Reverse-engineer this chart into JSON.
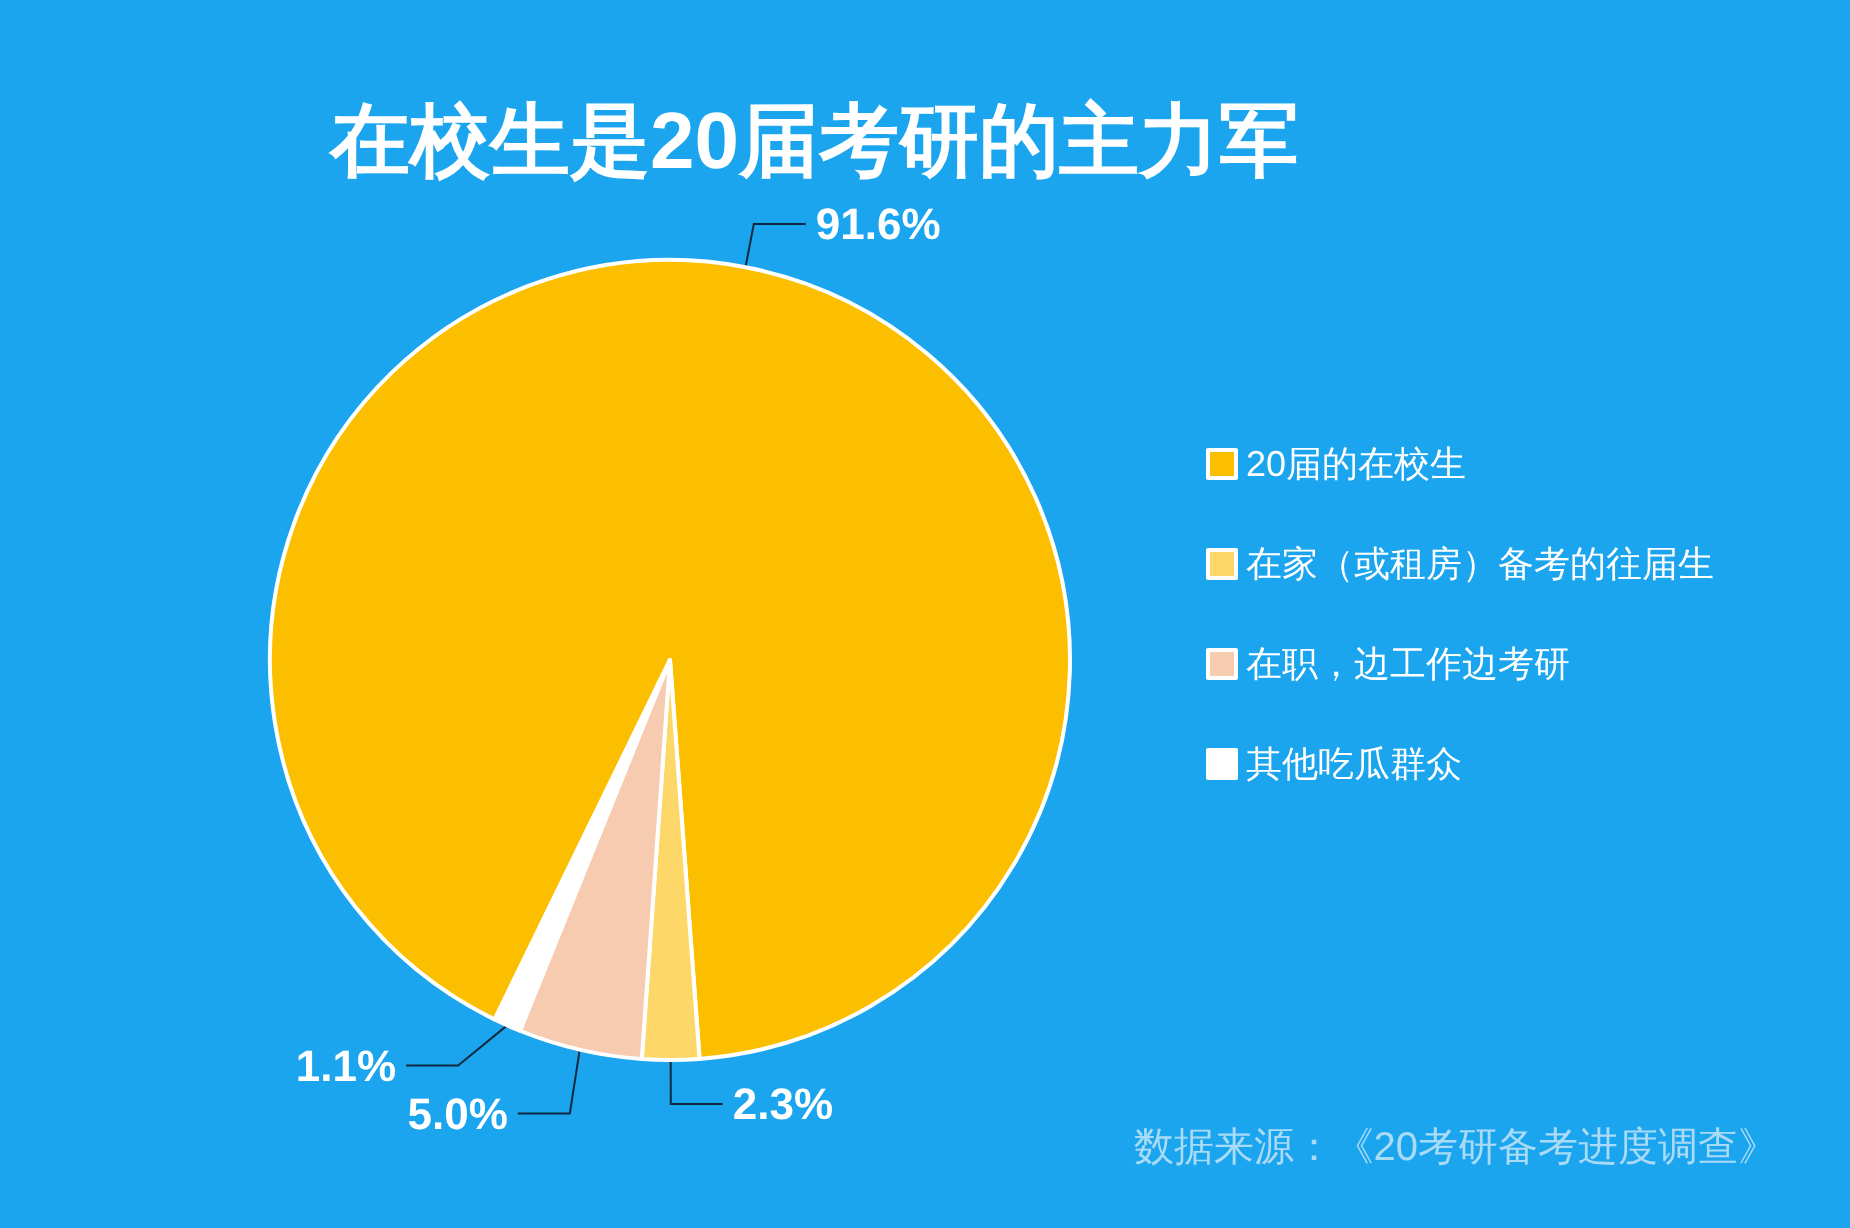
{
  "chart_data": {
    "type": "pie",
    "title": "在校生是20届考研的主力军",
    "categories": [
      "20届的在校生",
      "在家（或租房）备考的往届生",
      "在职，边工作边考研",
      "其他吃瓜群众"
    ],
    "values": [
      91.6,
      2.3,
      5.0,
      1.1
    ],
    "colors": [
      "#fbbf00",
      "#fdd869",
      "#f7cbb0",
      "#ffffff"
    ],
    "value_labels": [
      "91.6%",
      "2.3%",
      "5.0%",
      "1.1%"
    ],
    "legend": "right",
    "annotations": [
      "数据来源：《20考研备考进度调查》"
    ]
  }
}
